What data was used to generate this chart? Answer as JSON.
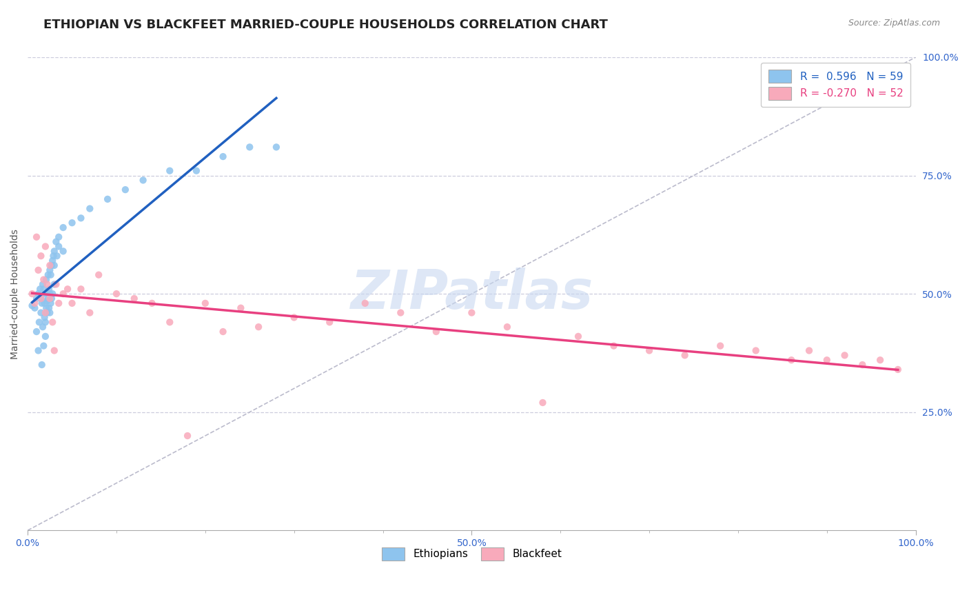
{
  "title": "ETHIOPIAN VS BLACKFEET MARRIED-COUPLE HOUSEHOLDS CORRELATION CHART",
  "source": "Source: ZipAtlas.com",
  "ylabel": "Married-couple Households",
  "xlim": [
    0.0,
    1.0
  ],
  "ylim": [
    0.0,
    1.0
  ],
  "yticks": [
    0.25,
    0.5,
    0.75,
    1.0
  ],
  "ytick_labels": [
    "25.0%",
    "50.0%",
    "75.0%",
    "100.0%"
  ],
  "xtick_positions": [
    0.0,
    0.5,
    1.0
  ],
  "xtick_labels": [
    "0.0%",
    "50.0%",
    "100.0%"
  ],
  "legend_eth": "R =  0.596   N = 59",
  "legend_bft": "R = -0.270   N = 52",
  "R_eth": 0.596,
  "N_eth": 59,
  "R_bft": -0.27,
  "N_bft": 52,
  "eth_color": "#8EC4EE",
  "bft_color": "#F8AABB",
  "eth_line_color": "#2060C0",
  "bft_line_color": "#E84080",
  "diagonal_color": "#BBBBCC",
  "bg_color": "#FFFFFF",
  "grid_color": "#CCCCDD",
  "watermark_text": "ZIPatlas",
  "watermark_color": "#C8D8F0",
  "title_fontsize": 13,
  "ylabel_fontsize": 10,
  "tick_fontsize": 10,
  "legend_fontsize": 11,
  "eth_x": [
    0.005,
    0.008,
    0.01,
    0.01,
    0.012,
    0.012,
    0.013,
    0.014,
    0.015,
    0.015,
    0.016,
    0.016,
    0.017,
    0.017,
    0.018,
    0.018,
    0.019,
    0.019,
    0.02,
    0.02,
    0.02,
    0.021,
    0.021,
    0.022,
    0.022,
    0.023,
    0.023,
    0.024,
    0.024,
    0.025,
    0.025,
    0.025,
    0.026,
    0.026,
    0.027,
    0.027,
    0.028,
    0.028,
    0.029,
    0.03,
    0.03,
    0.03,
    0.032,
    0.033,
    0.035,
    0.035,
    0.04,
    0.04,
    0.05,
    0.06,
    0.07,
    0.09,
    0.11,
    0.13,
    0.16,
    0.19,
    0.22,
    0.25,
    0.28
  ],
  "eth_y": [
    0.475,
    0.47,
    0.49,
    0.42,
    0.38,
    0.5,
    0.44,
    0.51,
    0.46,
    0.49,
    0.35,
    0.48,
    0.43,
    0.52,
    0.39,
    0.51,
    0.45,
    0.48,
    0.41,
    0.44,
    0.5,
    0.47,
    0.53,
    0.485,
    0.46,
    0.49,
    0.54,
    0.47,
    0.51,
    0.55,
    0.5,
    0.46,
    0.54,
    0.48,
    0.56,
    0.49,
    0.57,
    0.5,
    0.58,
    0.56,
    0.59,
    0.52,
    0.61,
    0.58,
    0.6,
    0.62,
    0.64,
    0.59,
    0.65,
    0.66,
    0.68,
    0.7,
    0.72,
    0.74,
    0.76,
    0.76,
    0.79,
    0.81,
    0.81
  ],
  "bft_x": [
    0.005,
    0.008,
    0.01,
    0.012,
    0.015,
    0.015,
    0.018,
    0.02,
    0.02,
    0.022,
    0.025,
    0.025,
    0.028,
    0.03,
    0.032,
    0.035,
    0.04,
    0.045,
    0.05,
    0.06,
    0.07,
    0.08,
    0.1,
    0.12,
    0.14,
    0.16,
    0.18,
    0.2,
    0.22,
    0.24,
    0.26,
    0.3,
    0.34,
    0.38,
    0.42,
    0.46,
    0.5,
    0.54,
    0.58,
    0.62,
    0.66,
    0.7,
    0.74,
    0.78,
    0.82,
    0.86,
    0.88,
    0.9,
    0.92,
    0.94,
    0.96,
    0.98
  ],
  "bft_y": [
    0.5,
    0.48,
    0.62,
    0.55,
    0.49,
    0.58,
    0.53,
    0.46,
    0.6,
    0.52,
    0.56,
    0.49,
    0.44,
    0.38,
    0.52,
    0.48,
    0.5,
    0.51,
    0.48,
    0.51,
    0.46,
    0.54,
    0.5,
    0.49,
    0.48,
    0.44,
    0.2,
    0.48,
    0.42,
    0.47,
    0.43,
    0.45,
    0.44,
    0.48,
    0.46,
    0.42,
    0.46,
    0.43,
    0.27,
    0.41,
    0.39,
    0.38,
    0.37,
    0.39,
    0.38,
    0.36,
    0.38,
    0.36,
    0.37,
    0.35,
    0.36,
    0.34
  ]
}
